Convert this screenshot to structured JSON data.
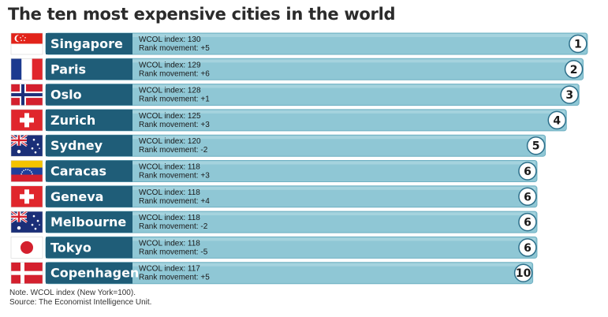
{
  "title": "The ten most expensive cities in the world",
  "chart_data": {
    "type": "bar",
    "title": "The ten most expensive cities in the world",
    "categories": [
      "Singapore",
      "Paris",
      "Oslo",
      "Zurich",
      "Sydney",
      "Caracas",
      "Geneva",
      "Melbourne",
      "Tokyo",
      "Copenhagen"
    ],
    "index_label": "WCOL index:",
    "movement_label": "Rank movement:",
    "values": [
      130,
      129,
      128,
      125,
      120,
      118,
      118,
      118,
      118,
      117
    ],
    "rank_movement": [
      "+5",
      "+6",
      "+1",
      "+3",
      "-2",
      "+3",
      "+4",
      "-2",
      "-5",
      "+5"
    ],
    "ranks": [
      "1",
      "2",
      "3",
      "4",
      "5",
      "6",
      "6",
      "6",
      "6",
      "10"
    ],
    "flags": [
      "singapore-flag",
      "france-flag",
      "norway-flag",
      "switzerland-flag",
      "australia-flag",
      "venezuela-flag",
      "switzerland-flag",
      "australia-flag",
      "japan-flag",
      "denmark-flag"
    ],
    "xlim": [
      0,
      130
    ],
    "grid": false,
    "colors": {
      "bar": "#8fc7d5",
      "bar_edge": "#6fb0c2",
      "label_box": "#1f5d78",
      "circle_edge": "#2d6f8a"
    }
  },
  "footnotes": {
    "note": "Note. WCOL index (New York=100).",
    "source": "Source: The Economist Intelligence Unit."
  }
}
